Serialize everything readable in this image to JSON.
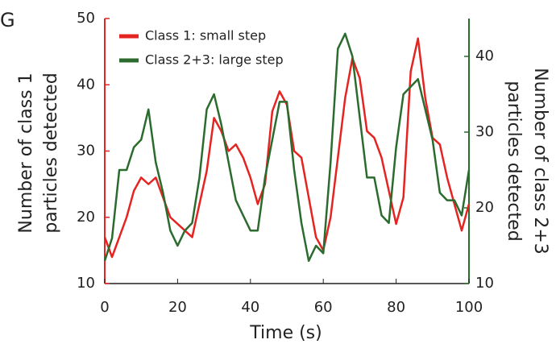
{
  "chart_data": {
    "type": "line",
    "title": "G",
    "xlabel": "Time (s)",
    "ylabel": [
      "Number of class 1",
      "particles detected"
    ],
    "y2label": [
      "Number of class 2+3",
      "particles detected"
    ],
    "x": [
      0,
      2,
      4,
      6,
      8,
      10,
      12,
      14,
      16,
      18,
      20,
      22,
      24,
      26,
      28,
      30,
      32,
      34,
      36,
      38,
      40,
      42,
      44,
      46,
      48,
      50,
      52,
      54,
      56,
      58,
      60,
      62,
      64,
      66,
      68,
      70,
      72,
      74,
      76,
      78,
      80,
      82,
      84,
      86,
      88,
      90,
      92,
      94,
      96,
      98,
      100
    ],
    "series": [
      {
        "name": "Class 1: small step",
        "color": "#e52421",
        "values": [
          17,
          14,
          17,
          20,
          24,
          26,
          25,
          26,
          23,
          20,
          19,
          18,
          17,
          22,
          27,
          35,
          33,
          30,
          31,
          29,
          26,
          22,
          25,
          36,
          39,
          37,
          30,
          29,
          23,
          17,
          15,
          20,
          29,
          38,
          44,
          41,
          33,
          32,
          29,
          24,
          19,
          23,
          42,
          47,
          38,
          32,
          31,
          26,
          22,
          18,
          22
        ]
      },
      {
        "name": "Class 2+3: large step",
        "color": "#2b6b2e",
        "axis": "y2",
        "values": [
          13,
          16,
          25,
          25,
          28,
          29,
          33,
          26,
          22,
          17,
          15,
          17,
          18,
          24,
          33,
          35,
          31,
          26,
          21,
          19,
          17,
          17,
          24,
          29,
          34,
          34,
          25,
          18,
          13,
          15,
          14,
          26,
          41,
          43,
          40,
          32,
          24,
          24,
          19,
          18,
          28,
          35,
          36,
          37,
          33,
          29,
          22,
          21,
          21,
          19,
          25
        ]
      }
    ],
    "xlim": [
      0,
      100
    ],
    "xticks": [
      0,
      20,
      40,
      60,
      80,
      100
    ],
    "ylim": [
      10,
      50
    ],
    "yticks": [
      10,
      20,
      30,
      40,
      50
    ],
    "y2lim": [
      10,
      45
    ],
    "y2ticks": [
      10,
      20,
      30,
      40
    ],
    "legend": "upper left"
  }
}
